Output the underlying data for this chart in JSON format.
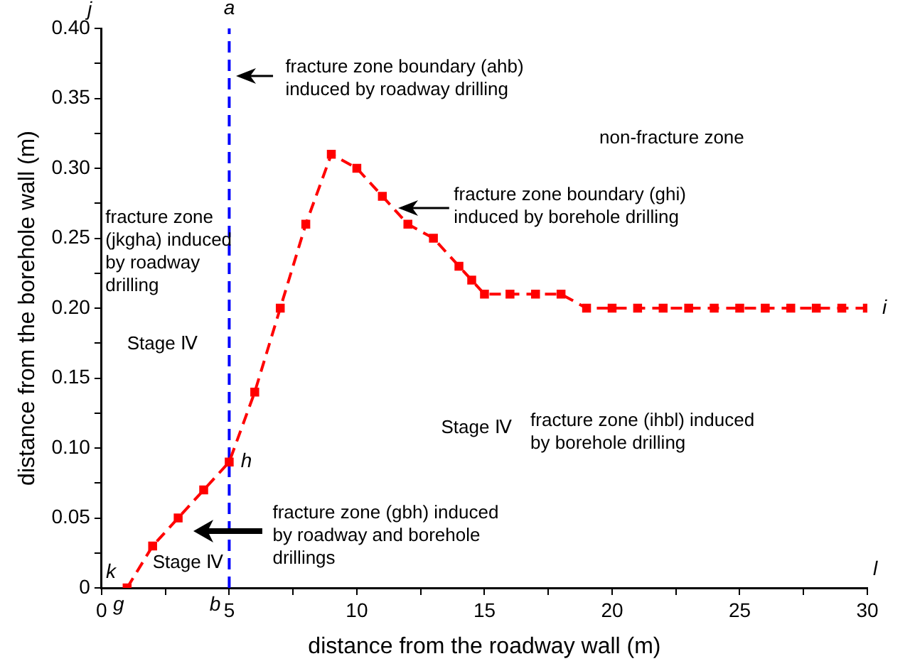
{
  "chart_data": {
    "type": "line",
    "xlabel": "distance from the roadway wall (m)",
    "ylabel": "distance from the borehole wall (m)",
    "series": [
      {
        "color": "#ff0000",
        "marker": "square",
        "line_style": "dashed",
        "x": [
          1,
          2,
          3,
          4,
          5,
          6,
          7,
          8,
          9,
          10,
          11,
          12,
          13,
          14,
          14.5,
          15,
          16,
          17,
          18,
          19,
          20,
          21,
          22,
          23,
          24,
          25,
          26,
          27,
          28,
          29,
          30
        ],
        "values": [
          0,
          0.03,
          0.05,
          0.07,
          0.09,
          0.14,
          0.2,
          0.26,
          0.31,
          0.3,
          0.28,
          0.26,
          0.25,
          0.23,
          0.22,
          0.21,
          0.21,
          0.21,
          0.21,
          0.2,
          0.2,
          0.2,
          0.2,
          0.2,
          0.2,
          0.2,
          0.2,
          0.2,
          0.2,
          0.2,
          0.2
        ]
      },
      {
        "color": "#0000ff",
        "marker": "none",
        "line_style": "dashed",
        "x": [
          5,
          5
        ],
        "values": [
          0,
          0.4
        ]
      }
    ],
    "xlim": [
      0,
      30
    ],
    "xticks": [
      0,
      {
        "value": 2.5,
        "label": null
      },
      5,
      {
        "value": 7.5,
        "label": null
      },
      10,
      {
        "value": 12.5,
        "label": null
      },
      15,
      {
        "value": 17.5,
        "label": null
      },
      20,
      {
        "value": 22.5,
        "label": null
      },
      25,
      {
        "value": 27.5,
        "label": null
      },
      30
    ],
    "ylim": [
      0,
      0.4
    ],
    "yticks": [
      0,
      {
        "value": 0.025,
        "label": null
      },
      0.05,
      {
        "value": 0.075,
        "label": null
      },
      {
        "value": 0.1,
        "label": "0.10"
      },
      {
        "value": 0.125,
        "label": null
      },
      0.15,
      {
        "value": 0.175,
        "label": null
      },
      {
        "value": 0.2,
        "label": "0.20"
      },
      {
        "value": 0.225,
        "label": null
      },
      0.25,
      {
        "value": 0.275,
        "label": null
      },
      {
        "value": 0.3,
        "label": "0.30"
      },
      {
        "value": 0.325,
        "label": null
      },
      0.35,
      {
        "value": 0.375,
        "label": null
      },
      {
        "value": 0.4,
        "label": "0.40"
      }
    ],
    "grid": false,
    "legend": false,
    "annotations": [
      {
        "text": "a",
        "x": 5,
        "y": 0.4
      },
      {
        "text": "h",
        "x": 5,
        "y": 0.09
      },
      {
        "text": "g",
        "x": 1,
        "y": 0
      },
      {
        "text": "b",
        "x": 5,
        "y": 0
      },
      {
        "text": "i",
        "x": 30,
        "y": 0.2
      },
      "j",
      "k",
      "l",
      "fracture zone boundary (ahb)\ninduced by roadway drilling",
      "non-fracture zone",
      "fracture zone boundary (ghi)\ninduced by borehole drilling",
      "fracture zone\n(jkgha) induced\nby roadway\ndrilling",
      "Stage Ⅳ",
      "Stage Ⅳ",
      "fracture zone (ihbl) induced\nby borehole drilling",
      "fracture zone (gbh) induced\nby roadway and borehole\ndrillings",
      "Stage Ⅳ"
    ]
  }
}
